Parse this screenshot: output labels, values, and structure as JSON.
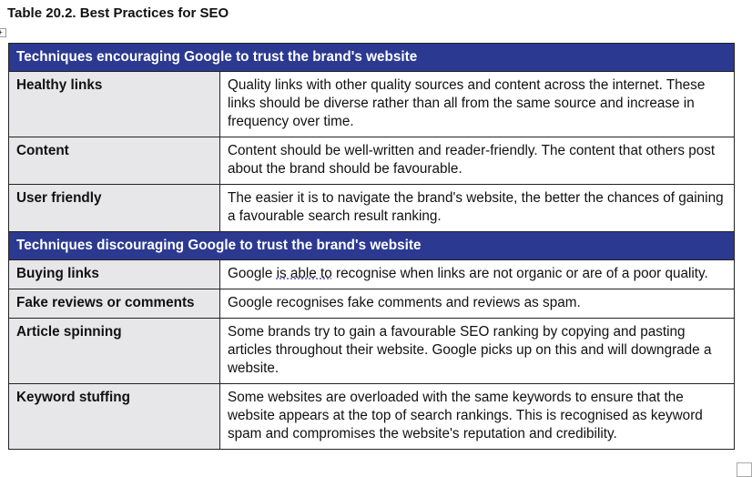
{
  "title": "Table 20.2. Best Practices for SEO",
  "colors": {
    "section_header": "#2b3990",
    "label_cell": "#e7e7ea"
  },
  "sections": [
    {
      "heading": "Techniques encouraging Google to trust the brand's website",
      "rows": [
        {
          "label": "Healthy links",
          "text": "Quality links with other quality sources and content across the internet. These links should be diverse rather than all from the same source and increase in frequency over time."
        },
        {
          "label": "Content",
          "text": "Content should be well-written and reader-friendly. The content that others post about the brand should be favourable."
        },
        {
          "label": "User friendly",
          "text": "The easier it is to navigate the brand's website, the better the chances of gaining a favourable search result ranking."
        }
      ]
    },
    {
      "heading": "Techniques discouraging Google to trust the brand's website",
      "rows": [
        {
          "label": "Buying links",
          "text_pre": "Google ",
          "text_marked": "is able to",
          "text_post": " recognise when links are not organic or are of a poor quality."
        },
        {
          "label": "Fake reviews or comments",
          "text": "Google recognises fake comments and reviews as spam."
        },
        {
          "label": "Article spinning",
          "text": "Some brands try to gain a favourable SEO ranking by copying and pasting articles throughout their website. Google picks up on this and will downgrade a website."
        },
        {
          "label": "Keyword stuffing",
          "text": "Some websites are overloaded with the same keywords to ensure that the website appears at the top of search rankings. This is recognised as keyword spam and compromises the website's reputation and credibility."
        }
      ]
    }
  ]
}
